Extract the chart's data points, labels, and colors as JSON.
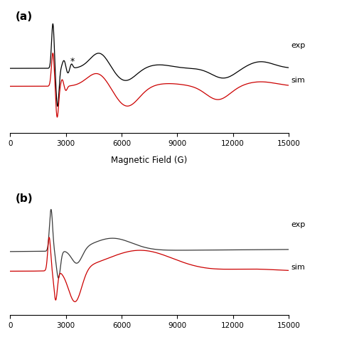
{
  "title_a": "(a)",
  "title_b": "(b)",
  "xlabel": "Magnetic Field (G)",
  "xlim": [
    0,
    15000
  ],
  "xticks": [
    0,
    3000,
    6000,
    9000,
    12000,
    15000
  ],
  "exp_color_a": "#000000",
  "sim_color_a": "#cc0000",
  "exp_color_b": "#3a3a3a",
  "sim_color_b": "#cc0000",
  "background_color": "#ffffff",
  "label_exp": "exp",
  "label_sim": "sim"
}
